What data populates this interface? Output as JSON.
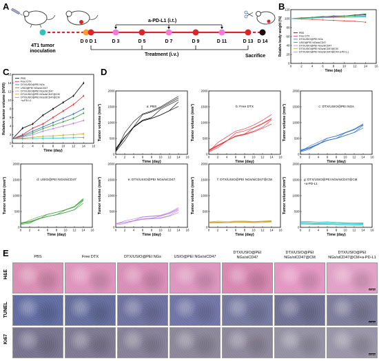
{
  "panel_labels": {
    "a": "A",
    "b": "B",
    "c": "C",
    "d": "D",
    "e": "E"
  },
  "timeline": {
    "start_label_line1": "4T1 tumor",
    "start_label_line2": "inoculation",
    "days_top": [
      "D 0",
      "D 1",
      "D 3",
      "D 5",
      "D 7",
      "D 9",
      "D 11",
      "D 13",
      "D 14"
    ],
    "apdl1_label": "a-PD-L1 (i.t.)",
    "treatment_label": "Treatment (i.v.)",
    "sacrifice_label": "Sacrifice"
  },
  "colors": {
    "pbs": "#000000",
    "free_dtx": "#e8262d",
    "dtx_ngs": "#2c69c6",
    "sicd47": "#3a9e3a",
    "dtx_sicd47": "#b57be2",
    "dtx_sicd47_cm": "#c9a227",
    "dtx_sicd47_cm_pdl1": "#22c3c3",
    "timeline_red": "#d9262a",
    "timeline_pink": "#f07ed4",
    "timeline_teal": "#33c2b5",
    "timeline_orange": "#f2a12a"
  },
  "legend_series": [
    "PBS",
    "Free DTX",
    "DTX/USIO@PEI NGs",
    "USIO@PEI NGs/siCD47",
    "DTX/USIO@PEI NGs/siCD47",
    "DTX/USIO@PEI NGs/siCD47@CM",
    "DTX/USIO@PEI NGs/siCD47@CM+a-PD-L1"
  ],
  "legend_series_c": [
    "PBS",
    "Free DTX",
    "DTX/USIO@PEI NGs",
    "USIO@PEI NGs/siCD47",
    "DTX/USIO@PEI NGs/siCD47",
    "DTX/USIO@PEI NGs/siCD47@CM",
    "DTX/USIO@PEI NGs/siCD47@CM",
    "+a-PD-L1"
  ],
  "chart_data": [
    {
      "id": "B",
      "type": "line",
      "ylabel": "Relative body weight (%)",
      "xlabel": "Time (day)",
      "xlim": [
        0,
        16
      ],
      "ylim": [
        0,
        120
      ],
      "xticks": [
        0,
        2,
        4,
        6,
        8,
        10,
        12,
        14,
        16
      ],
      "yticks": [
        0,
        20,
        40,
        60,
        80,
        100,
        120
      ],
      "x": [
        0,
        2,
        4,
        6,
        8,
        10,
        12,
        14
      ],
      "series": [
        {
          "name": "PBS",
          "values": [
            100,
            101,
            102,
            104,
            105,
            106,
            108,
            110
          ]
        },
        {
          "name": "Free DTX",
          "values": [
            100,
            99,
            98,
            97,
            96,
            95,
            94,
            92
          ]
        },
        {
          "name": "DTX/USIO@PEI NGs",
          "values": [
            100,
            102,
            103,
            104,
            106,
            106,
            107,
            108
          ]
        },
        {
          "name": "USIO@PEI NGs/siCD47",
          "values": [
            100,
            101,
            103,
            105,
            104,
            106,
            107,
            109
          ]
        },
        {
          "name": "DTX/USIO@PEI NGs/siCD47",
          "values": [
            100,
            101,
            102,
            103,
            104,
            104,
            105,
            106
          ]
        },
        {
          "name": "DTX/USIO@PEI NGs/siCD47@CM",
          "values": [
            100,
            101,
            101,
            102,
            103,
            104,
            104,
            105
          ]
        },
        {
          "name": "DTX/USIO@PEI NGs/siCD47@CM+a-PD-L1",
          "values": [
            100,
            100,
            101,
            102,
            102,
            103,
            104,
            104
          ]
        }
      ]
    },
    {
      "id": "C",
      "type": "line",
      "ylabel": "Relative tumor volume (V/V0)",
      "xlabel": "Time (day)",
      "xlim": [
        0,
        16
      ],
      "ylim": [
        0,
        16
      ],
      "xticks": [
        0,
        2,
        4,
        6,
        8,
        10,
        12,
        14,
        16
      ],
      "yticks": [
        0,
        2,
        4,
        6,
        8,
        10,
        12,
        14,
        16
      ],
      "x": [
        0,
        2,
        4,
        6,
        8,
        10,
        12,
        14
      ],
      "series": [
        {
          "name": "PBS",
          "values": [
            1,
            3.5,
            4.5,
            6.5,
            8,
            9.5,
            11,
            14
          ]
        },
        {
          "name": "Free DTX",
          "values": [
            1,
            2,
            3.5,
            4.5,
            6,
            7.5,
            9,
            11
          ]
        },
        {
          "name": "DTX/USIO@PEI NGs",
          "values": [
            1,
            1.8,
            2.8,
            3.8,
            4.8,
            5.8,
            6.8,
            8
          ]
        },
        {
          "name": "USIO@PEI NGs/siCD47",
          "values": [
            1,
            1.6,
            2.4,
            3.4,
            4.2,
            5,
            5.8,
            7
          ]
        },
        {
          "name": "DTX/USIO@PEI NGs/siCD47",
          "values": [
            1,
            1.5,
            2,
            2.8,
            3.4,
            4,
            4.6,
            5.3
          ]
        },
        {
          "name": "DTX/USIO@PEI NGs/siCD47@CM",
          "values": [
            1,
            1.2,
            1.4,
            1.6,
            1.7,
            1.9,
            2,
            2.2
          ]
        },
        {
          "name": "DTX/USIO@PEI NGs/siCD47@CM+a-PD-L1",
          "values": [
            1,
            1.05,
            1.1,
            1.15,
            1.2,
            1.25,
            1.3,
            1.35
          ]
        }
      ]
    },
    {
      "id": "D",
      "type": "line",
      "ylabel": "Tumor volume (mm³)",
      "xlabel": "Time (day)",
      "xlim": [
        0,
        16
      ],
      "ylim": [
        0,
        2000
      ],
      "xticks": [
        0,
        2,
        4,
        6,
        8,
        10,
        12,
        14,
        16
      ],
      "yticks": [
        0,
        500,
        1000,
        1500,
        2000
      ],
      "x": [
        0,
        2,
        4,
        6,
        8,
        10,
        12,
        14
      ],
      "subplots": [
        {
          "title": "a: PBS",
          "color_key": "pbs",
          "finals": [
            1900,
            1800,
            1700,
            1600,
            1550
          ],
          "shape": [
            0.08,
            0.32,
            0.52,
            0.66,
            0.72,
            0.8,
            0.9,
            1.0
          ]
        },
        {
          "title": "b: Free DTX",
          "color_key": "free_dtx",
          "finals": [
            1300,
            1150,
            1100,
            1050,
            980
          ],
          "shape": [
            0.1,
            0.25,
            0.4,
            0.55,
            0.62,
            0.72,
            0.85,
            1.0
          ]
        },
        {
          "title": "c: DTX/USIO@PEI NGs",
          "color_key": "dtx_ngs",
          "finals": [
            1000,
            950,
            920,
            880,
            850
          ],
          "shape": [
            0.12,
            0.22,
            0.36,
            0.5,
            0.58,
            0.7,
            0.82,
            1.0
          ]
        },
        {
          "title": "d: USIO@PEI NGs/siCD47",
          "color_key": "sicd47",
          "finals": [
            950,
            900,
            860,
            820,
            780
          ],
          "shape": [
            0.14,
            0.2,
            0.32,
            0.42,
            0.5,
            0.6,
            0.72,
            1.0
          ]
        },
        {
          "title": "e: DTX/USIO@PEI NGs/siCD47",
          "color_key": "dtx_sicd47",
          "finals": [
            650,
            600,
            560,
            520,
            480
          ],
          "shape": [
            0.2,
            0.28,
            0.38,
            0.5,
            0.55,
            0.6,
            0.75,
            1.0
          ]
        },
        {
          "title": "f: DTX/USIO@PEI NGs/siCD47@CM",
          "color_key": "dtx_sicd47_cm",
          "finals": [
            220,
            200,
            190,
            180,
            170
          ],
          "shape": [
            0.8,
            0.85,
            0.82,
            0.88,
            0.9,
            0.86,
            0.92,
            1.0
          ]
        },
        {
          "title": "g: DTX/USIO@PEI NGs/siCD47@CM +a-PD-L1",
          "title_line1": "g: DTX/USIO@PEI NGs/siCD47@CM",
          "title_line2": "+a-PD-L1",
          "color_key": "dtx_sicd47_cm_pdl1",
          "finals": [
            150,
            130,
            110,
            90,
            80
          ],
          "shape": [
            1.3,
            1.2,
            1.1,
            1.15,
            1.05,
            1.0,
            0.95,
            1.0
          ]
        }
      ]
    }
  ],
  "histology": {
    "columns": [
      "PBS",
      "Free DTX",
      "DTX/USIO@PEI NGs",
      "USIO@PEI NGs/siCD47",
      "DTX/USIO@PEI NGs/siCD47",
      "DTX/USIO@PEI NGs/siCD47@CM",
      "DTX/USIO@PEI NGs/siCD47@CM+a-PD-L1"
    ],
    "columns_line1": [
      "PBS",
      "Free DTX",
      "DTX/USIO@PEI NGs",
      "USIO@PEI NGs/siCD47",
      "DTX/USIO@PEI",
      "DTX/USIO@PEI",
      "DTX/USIO@PEI"
    ],
    "columns_line2": [
      "",
      "",
      "",
      "",
      "NGs/siCD47",
      "NGs/siCD47@CM",
      "NGs/siCD47@CM+a-PD-L1"
    ],
    "rows": [
      "H&E",
      "TUNEL",
      "Ki67"
    ],
    "scale_bar": "100 μm",
    "tile_colors": {
      "H&E": [
        "#d98db3",
        "#de93bc",
        "#d88cb6",
        "#dc95be",
        "#d786b0",
        "#e396c2",
        "#e1a0c6"
      ],
      "TUNEL": [
        "#5f6aa0",
        "#626b9b",
        "#6d709e",
        "#6f73a4",
        "#74789f",
        "#6f6f94",
        "#7b7b9a"
      ],
      "Ki67": [
        "#76728e",
        "#7d7790",
        "#857f96",
        "#8a8598",
        "#8c869a",
        "#9390a2",
        "#9893a6"
      ]
    }
  }
}
